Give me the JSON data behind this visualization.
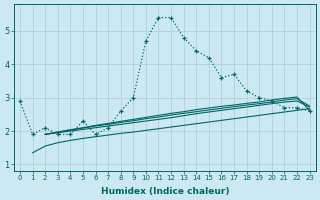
{
  "xlabel": "Humidex (Indice chaleur)",
  "background_color": "#cce8f0",
  "grid_color": "#aaccd8",
  "line_color": "#006666",
  "x_values": [
    0,
    1,
    2,
    3,
    4,
    5,
    6,
    7,
    8,
    9,
    10,
    11,
    12,
    13,
    14,
    15,
    16,
    17,
    18,
    19,
    20,
    21,
    22,
    23
  ],
  "series1": [
    2.9,
    1.9,
    2.1,
    1.9,
    1.9,
    2.3,
    1.9,
    2.1,
    2.6,
    3.0,
    4.7,
    5.4,
    5.4,
    4.8,
    4.4,
    4.2,
    3.6,
    3.7,
    3.2,
    3.0,
    2.9,
    2.7,
    2.7,
    2.6
  ],
  "line1_x": [
    1,
    2,
    3,
    4,
    5,
    6,
    7,
    8,
    9,
    10,
    11,
    12,
    13,
    14,
    15,
    16,
    17,
    18,
    19,
    20,
    21,
    22,
    23
  ],
  "line1_y": [
    1.35,
    1.55,
    1.65,
    1.72,
    1.78,
    1.83,
    1.88,
    1.93,
    1.97,
    2.02,
    2.07,
    2.12,
    2.17,
    2.22,
    2.27,
    2.32,
    2.37,
    2.42,
    2.47,
    2.52,
    2.57,
    2.62,
    2.67
  ],
  "line2_x": [
    2,
    3,
    4,
    5,
    6,
    7,
    8,
    9,
    10,
    11,
    12,
    13,
    14,
    15,
    16,
    17,
    18,
    19,
    20,
    21,
    22,
    23
  ],
  "line2_y": [
    1.9,
    1.95,
    2.0,
    2.05,
    2.1,
    2.15,
    2.2,
    2.25,
    2.3,
    2.35,
    2.4,
    2.46,
    2.52,
    2.57,
    2.62,
    2.67,
    2.72,
    2.77,
    2.82,
    2.87,
    2.9,
    2.72
  ],
  "line3_x": [
    2,
    3,
    4,
    5,
    6,
    7,
    8,
    9,
    10,
    11,
    12,
    13,
    14,
    15,
    16,
    17,
    18,
    19,
    20,
    21,
    22,
    23
  ],
  "line3_y": [
    1.9,
    1.97,
    2.03,
    2.09,
    2.15,
    2.2,
    2.26,
    2.31,
    2.37,
    2.42,
    2.48,
    2.53,
    2.58,
    2.63,
    2.68,
    2.73,
    2.78,
    2.82,
    2.87,
    2.93,
    2.97,
    2.75
  ],
  "line4_x": [
    2,
    3,
    4,
    5,
    6,
    7,
    8,
    9,
    10,
    11,
    12,
    13,
    14,
    15,
    16,
    17,
    18,
    19,
    20,
    21,
    22,
    23
  ],
  "line4_y": [
    1.9,
    1.97,
    2.04,
    2.1,
    2.17,
    2.23,
    2.29,
    2.35,
    2.41,
    2.47,
    2.53,
    2.58,
    2.64,
    2.69,
    2.74,
    2.78,
    2.83,
    2.87,
    2.93,
    2.98,
    3.02,
    2.62
  ],
  "ylim": [
    0.8,
    5.8
  ],
  "yticks": [
    1,
    2,
    3,
    4,
    5
  ],
  "xticks": [
    0,
    1,
    2,
    3,
    4,
    5,
    6,
    7,
    8,
    9,
    10,
    11,
    12,
    13,
    14,
    15,
    16,
    17,
    18,
    19,
    20,
    21,
    22,
    23
  ]
}
